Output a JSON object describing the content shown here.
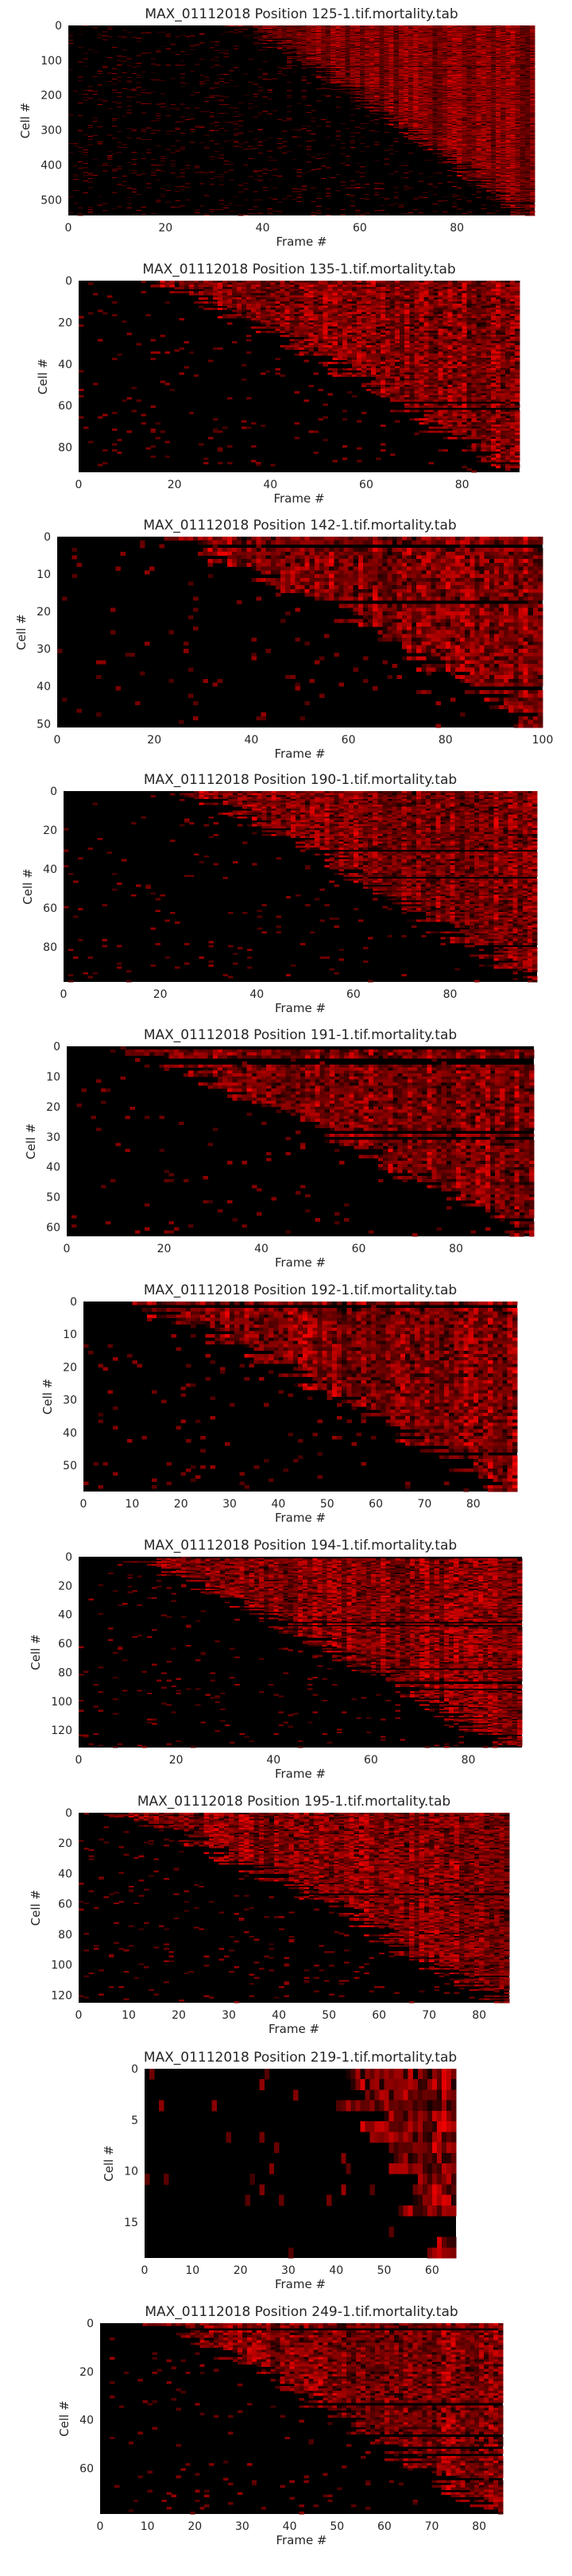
{
  "chart_data": [
    {
      "type": "heatmap",
      "title": "MAX_01112018 Position 125-1.tif.mortality.tab",
      "xlabel": "Frame #",
      "ylabel": "Cell #",
      "x_ticks": [
        0,
        20,
        40,
        60,
        80
      ],
      "y_ticks": [
        0,
        100,
        200,
        300,
        400,
        500
      ],
      "xlim": [
        0,
        96
      ],
      "ylim": [
        0,
        545
      ],
      "colormap": [
        "#000000",
        "#ff0000"
      ],
      "grid": false,
      "rows": 545,
      "frames": 96,
      "onset_start": 35,
      "onset_end": 95
    },
    {
      "type": "heatmap",
      "title": "MAX_01112018 Position 135-1.tif.mortality.tab",
      "xlabel": "Frame #",
      "ylabel": "Cell #",
      "x_ticks": [
        0,
        20,
        40,
        60,
        80
      ],
      "y_ticks": [
        0,
        20,
        40,
        60,
        80
      ],
      "xlim": [
        0,
        92
      ],
      "ylim": [
        0,
        92
      ],
      "colormap": [
        "#000000",
        "#ff0000"
      ],
      "grid": false,
      "rows": 92,
      "frames": 92,
      "onset_start": 15,
      "onset_end": 90
    },
    {
      "type": "heatmap",
      "title": "MAX_01112018 Position 142-1.tif.mortality.tab",
      "xlabel": "Frame #",
      "ylabel": "Cell #",
      "x_ticks": [
        0,
        20,
        40,
        60,
        80,
        100
      ],
      "y_ticks": [
        0,
        10,
        20,
        30,
        40,
        50
      ],
      "xlim": [
        0,
        100
      ],
      "ylim": [
        0,
        51
      ],
      "colormap": [
        "#000000",
        "#ff0000"
      ],
      "grid": false,
      "rows": 51,
      "frames": 100,
      "onset_start": 22,
      "onset_end": 98
    },
    {
      "type": "heatmap",
      "title": "MAX_01112018 Position 190-1.tif.mortality.tab",
      "xlabel": "Frame #",
      "ylabel": "Cell #",
      "x_ticks": [
        0,
        20,
        40,
        60,
        80
      ],
      "y_ticks": [
        0,
        20,
        40,
        60,
        80
      ],
      "xlim": [
        0,
        98
      ],
      "ylim": [
        0,
        98
      ],
      "colormap": [
        "#000000",
        "#ff0000"
      ],
      "grid": false,
      "rows": 98,
      "frames": 98,
      "onset_start": 25,
      "onset_end": 95
    },
    {
      "type": "heatmap",
      "title": "MAX_01112018 Position 191-1.tif.mortality.tab",
      "xlabel": "Frame #",
      "ylabel": "Cell #",
      "x_ticks": [
        0,
        20,
        40,
        60,
        80
      ],
      "y_ticks": [
        0,
        10,
        20,
        30,
        40,
        50,
        60
      ],
      "xlim": [
        0,
        96
      ],
      "ylim": [
        0,
        63
      ],
      "colormap": [
        "#000000",
        "#ff0000"
      ],
      "grid": false,
      "rows": 63,
      "frames": 96,
      "onset_start": 10,
      "onset_end": 94
    },
    {
      "type": "heatmap",
      "title": "MAX_01112018 Position 192-1.tif.mortality.tab",
      "xlabel": "Frame #",
      "ylabel": "Cell #",
      "x_ticks": [
        0,
        10,
        20,
        30,
        40,
        50,
        60,
        70,
        80
      ],
      "y_ticks": [
        0,
        10,
        20,
        30,
        40,
        50
      ],
      "xlim": [
        0,
        89
      ],
      "ylim": [
        0,
        58
      ],
      "colormap": [
        "#000000",
        "#ff0000"
      ],
      "grid": false,
      "rows": 58,
      "frames": 89,
      "onset_start": 10,
      "onset_end": 85
    },
    {
      "type": "heatmap",
      "title": "MAX_01112018 Position 194-1.tif.mortality.tab",
      "xlabel": "Frame #",
      "ylabel": "Cell #",
      "x_ticks": [
        0,
        20,
        40,
        60,
        80
      ],
      "y_ticks": [
        0,
        20,
        40,
        60,
        80,
        100,
        120
      ],
      "xlim": [
        0,
        91
      ],
      "ylim": [
        0,
        132
      ],
      "colormap": [
        "#000000",
        "#ff0000"
      ],
      "grid": false,
      "rows": 132,
      "frames": 91,
      "onset_start": 10,
      "onset_end": 88
    },
    {
      "type": "heatmap",
      "title": "MAX_01112018 Position 195-1.tif.mortality.tab",
      "xlabel": "Frame #",
      "ylabel": "Cell #",
      "x_ticks": [
        0,
        10,
        20,
        30,
        40,
        50,
        60,
        70,
        80
      ],
      "y_ticks": [
        0,
        20,
        40,
        60,
        80,
        100,
        120
      ],
      "xlim": [
        0,
        86
      ],
      "ylim": [
        0,
        125
      ],
      "colormap": [
        "#000000",
        "#ff0000"
      ],
      "grid": false,
      "rows": 125,
      "frames": 86,
      "onset_start": 8,
      "onset_end": 84
    },
    {
      "type": "heatmap",
      "title": "MAX_01112018 Position 219-1.tif.mortality.tab",
      "xlabel": "Frame #",
      "ylabel": "Cell #",
      "x_ticks": [
        0,
        10,
        20,
        30,
        40,
        50,
        60
      ],
      "y_ticks": [
        0,
        5,
        10,
        15
      ],
      "xlim": [
        0,
        65
      ],
      "ylim": [
        0,
        18.5
      ],
      "colormap": [
        "#000000",
        "#ff0000"
      ],
      "grid": false,
      "rows": 18,
      "frames": 65,
      "onset_start": 38,
      "onset_end": 62
    },
    {
      "type": "heatmap",
      "title": "MAX_01112018 Position 249-1.tif.mortality.tab",
      "xlabel": "Frame #",
      "ylabel": "Cell #",
      "x_ticks": [
        0,
        10,
        20,
        30,
        40,
        50,
        60,
        70,
        80
      ],
      "y_ticks": [
        0,
        20,
        40,
        60
      ],
      "xlim": [
        0,
        85
      ],
      "ylim": [
        0,
        79
      ],
      "colormap": [
        "#000000",
        "#ff0000"
      ],
      "grid": false,
      "rows": 79,
      "frames": 85,
      "onset_start": 12,
      "onset_end": 82
    }
  ]
}
